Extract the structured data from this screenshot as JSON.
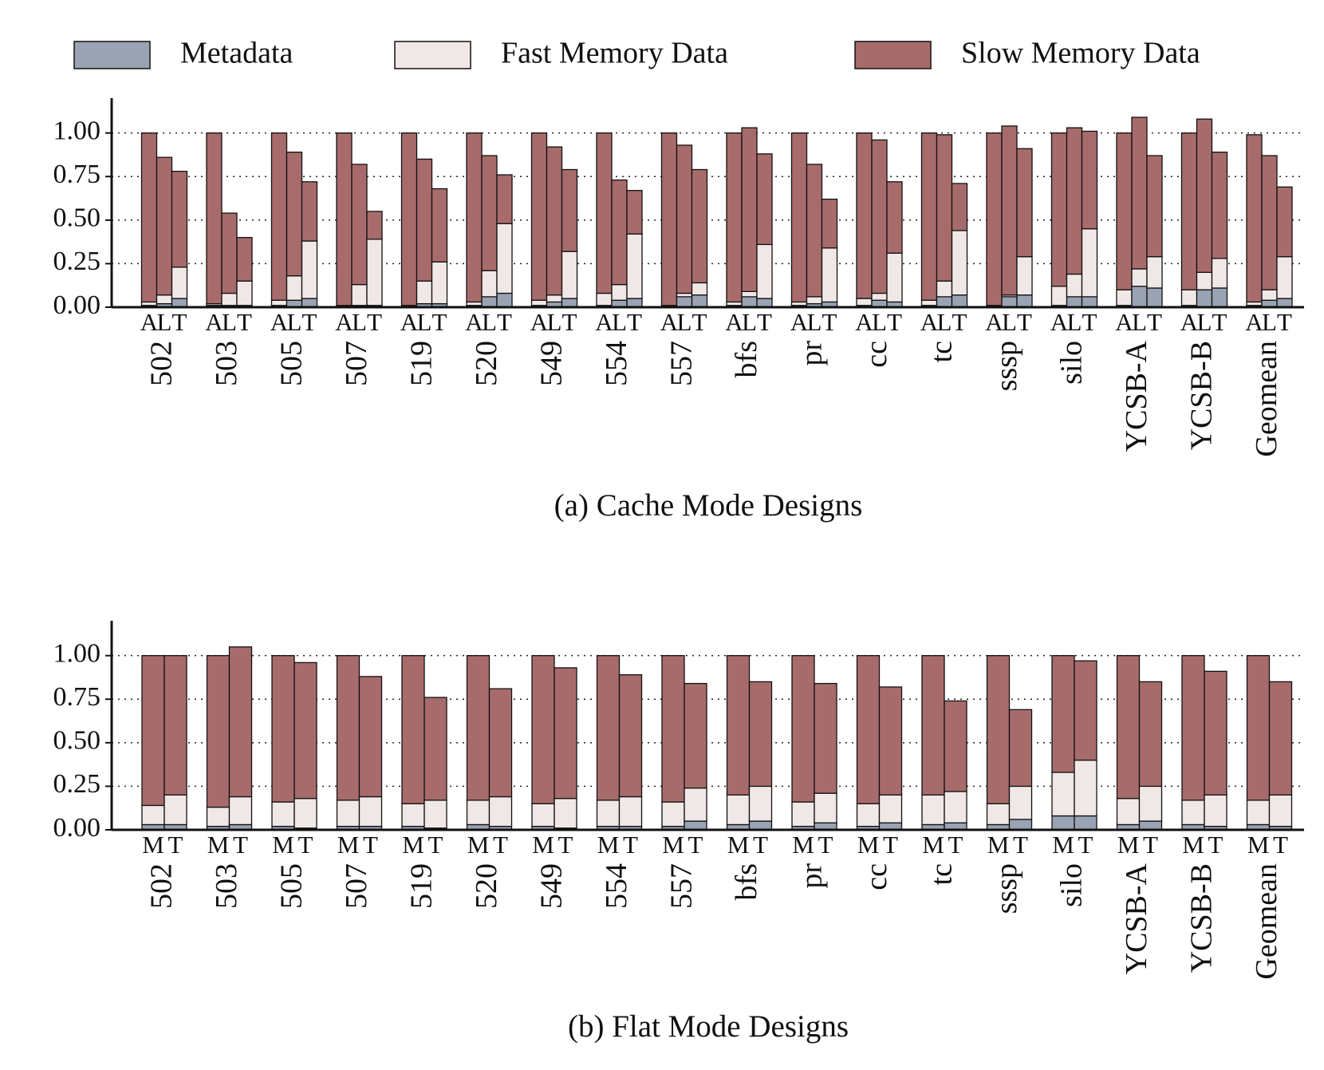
{
  "chart_data": [
    {
      "type": "bar",
      "stacked": true,
      "caption": "(a) Cache Mode Designs",
      "categories": [
        "502",
        "503",
        "505",
        "507",
        "519",
        "520",
        "549",
        "554",
        "557",
        "bfs",
        "pr",
        "cc",
        "tc",
        "sssp",
        "silo",
        "YCSB-A",
        "YCSB-B",
        "Geomean"
      ],
      "designs": [
        "A",
        "L",
        "T"
      ],
      "ylim": [
        0,
        1.2
      ],
      "yticks": [
        {
          "value": 0,
          "label": "0.00"
        },
        {
          "value": 0.25,
          "label": "0.25"
        },
        {
          "value": 0.5,
          "label": "0.50"
        },
        {
          "value": 0.75,
          "label": "0.75"
        },
        {
          "value": 1,
          "label": "1.00"
        }
      ],
      "grid": true,
      "series": [
        {
          "name": "Metadata",
          "color": "#9aa3b3",
          "values": [
            [
              0.01,
              0.02,
              0.05
            ],
            [
              0.01,
              0.01,
              0.01
            ],
            [
              0.01,
              0.04,
              0.05
            ],
            [
              0.01,
              0.01,
              0.01
            ],
            [
              0.01,
              0.02,
              0.02
            ],
            [
              0.01,
              0.06,
              0.08
            ],
            [
              0.01,
              0.03,
              0.05
            ],
            [
              0.01,
              0.04,
              0.05
            ],
            [
              0.01,
              0.06,
              0.07
            ],
            [
              0.01,
              0.06,
              0.05
            ],
            [
              0.01,
              0.02,
              0.03
            ],
            [
              0.01,
              0.04,
              0.03
            ],
            [
              0.01,
              0.06,
              0.07
            ],
            [
              0.01,
              0.06,
              0.07
            ],
            [
              0.01,
              0.06,
              0.06
            ],
            [
              0.01,
              0.12,
              0.11
            ],
            [
              0.01,
              0.1,
              0.11
            ],
            [
              0.01,
              0.04,
              0.05
            ]
          ]
        },
        {
          "name": "Fast Memory Data",
          "color": "#f0e8e6",
          "values": [
            [
              0.02,
              0.05,
              0.18
            ],
            [
              0.01,
              0.07,
              0.14
            ],
            [
              0.03,
              0.14,
              0.33
            ],
            [
              0,
              0.12,
              0.38
            ],
            [
              0,
              0.13,
              0.24
            ],
            [
              0.02,
              0.15,
              0.4
            ],
            [
              0.03,
              0.04,
              0.27
            ],
            [
              0.07,
              0.09,
              0.37
            ],
            [
              0,
              0.02,
              0.07
            ],
            [
              0.02,
              0.03,
              0.31
            ],
            [
              0.02,
              0.04,
              0.31
            ],
            [
              0.04,
              0.04,
              0.28
            ],
            [
              0.03,
              0.09,
              0.37
            ],
            [
              0,
              0.01,
              0.22
            ],
            [
              0.11,
              0.13,
              0.39
            ],
            [
              0.09,
              0.1,
              0.18
            ],
            [
              0.09,
              0.1,
              0.17
            ],
            [
              0.02,
              0.06,
              0.24
            ]
          ]
        },
        {
          "name": "Slow Memory Data",
          "color": "#a86b6b",
          "values": [
            [
              0.97,
              0.79,
              0.55
            ],
            [
              0.98,
              0.46,
              0.25
            ],
            [
              0.96,
              0.71,
              0.34
            ],
            [
              0.99,
              0.69,
              0.16
            ],
            [
              0.99,
              0.7,
              0.42
            ],
            [
              0.97,
              0.66,
              0.28
            ],
            [
              0.96,
              0.85,
              0.47
            ],
            [
              0.92,
              0.6,
              0.25
            ],
            [
              0.99,
              0.85,
              0.65
            ],
            [
              0.97,
              0.94,
              0.52
            ],
            [
              0.97,
              0.76,
              0.28
            ],
            [
              0.95,
              0.88,
              0.41
            ],
            [
              0.96,
              0.84,
              0.27
            ],
            [
              0.99,
              0.97,
              0.62
            ],
            [
              0.88,
              0.84,
              0.56
            ],
            [
              0.9,
              0.87,
              0.58
            ],
            [
              0.9,
              0.88,
              0.61
            ],
            [
              0.96,
              0.77,
              0.4
            ]
          ]
        }
      ]
    },
    {
      "type": "bar",
      "stacked": true,
      "caption": "(b) Flat Mode Designs",
      "categories": [
        "502",
        "503",
        "505",
        "507",
        "519",
        "520",
        "549",
        "554",
        "557",
        "bfs",
        "pr",
        "cc",
        "tc",
        "sssp",
        "silo",
        "YCSB-A",
        "YCSB-B",
        "Geomean"
      ],
      "designs": [
        "M",
        "T"
      ],
      "ylim": [
        0,
        1.2
      ],
      "yticks": [
        {
          "value": 0,
          "label": "0.00"
        },
        {
          "value": 0.25,
          "label": "0.25"
        },
        {
          "value": 0.5,
          "label": "0.50"
        },
        {
          "value": 0.75,
          "label": "0.75"
        },
        {
          "value": 1,
          "label": "1.00"
        }
      ],
      "grid": true,
      "series": [
        {
          "values": [
            [
              0.03,
              0.03
            ],
            [
              0.02,
              0.03
            ],
            [
              0.02,
              0.01
            ],
            [
              0.02,
              0.02
            ],
            [
              0.02,
              0.01
            ],
            [
              0.03,
              0.02
            ],
            [
              0.02,
              0.01
            ],
            [
              0.02,
              0.02
            ],
            [
              0.02,
              0.05
            ],
            [
              0.03,
              0.05
            ],
            [
              0.02,
              0.04
            ],
            [
              0.02,
              0.04
            ],
            [
              0.03,
              0.04
            ],
            [
              0.03,
              0.06
            ],
            [
              0.08,
              0.08
            ],
            [
              0.03,
              0.05
            ],
            [
              0.03,
              0.02
            ],
            [
              0.03,
              0.02
            ]
          ]
        },
        {
          "values": [
            [
              0.11,
              0.17
            ],
            [
              0.11,
              0.16
            ],
            [
              0.14,
              0.17
            ],
            [
              0.15,
              0.17
            ],
            [
              0.13,
              0.16
            ],
            [
              0.14,
              0.17
            ],
            [
              0.13,
              0.17
            ],
            [
              0.15,
              0.17
            ],
            [
              0.14,
              0.19
            ],
            [
              0.17,
              0.2
            ],
            [
              0.14,
              0.17
            ],
            [
              0.13,
              0.16
            ],
            [
              0.17,
              0.18
            ],
            [
              0.12,
              0.19
            ],
            [
              0.25,
              0.32
            ],
            [
              0.15,
              0.2
            ],
            [
              0.14,
              0.18
            ],
            [
              0.14,
              0.18
            ]
          ]
        },
        {
          "values": [
            [
              0.86,
              0.8
            ],
            [
              0.87,
              0.86
            ],
            [
              0.84,
              0.78
            ],
            [
              0.83,
              0.69
            ],
            [
              0.85,
              0.59
            ],
            [
              0.83,
              0.62
            ],
            [
              0.85,
              0.75
            ],
            [
              0.83,
              0.7
            ],
            [
              0.84,
              0.6
            ],
            [
              0.8,
              0.6
            ],
            [
              0.84,
              0.63
            ],
            [
              0.85,
              0.62
            ],
            [
              0.8,
              0.52
            ],
            [
              0.85,
              0.44
            ],
            [
              0.67,
              0.57
            ],
            [
              0.82,
              0.6
            ],
            [
              0.83,
              0.71
            ],
            [
              0.83,
              0.65
            ]
          ]
        }
      ]
    }
  ]
}
